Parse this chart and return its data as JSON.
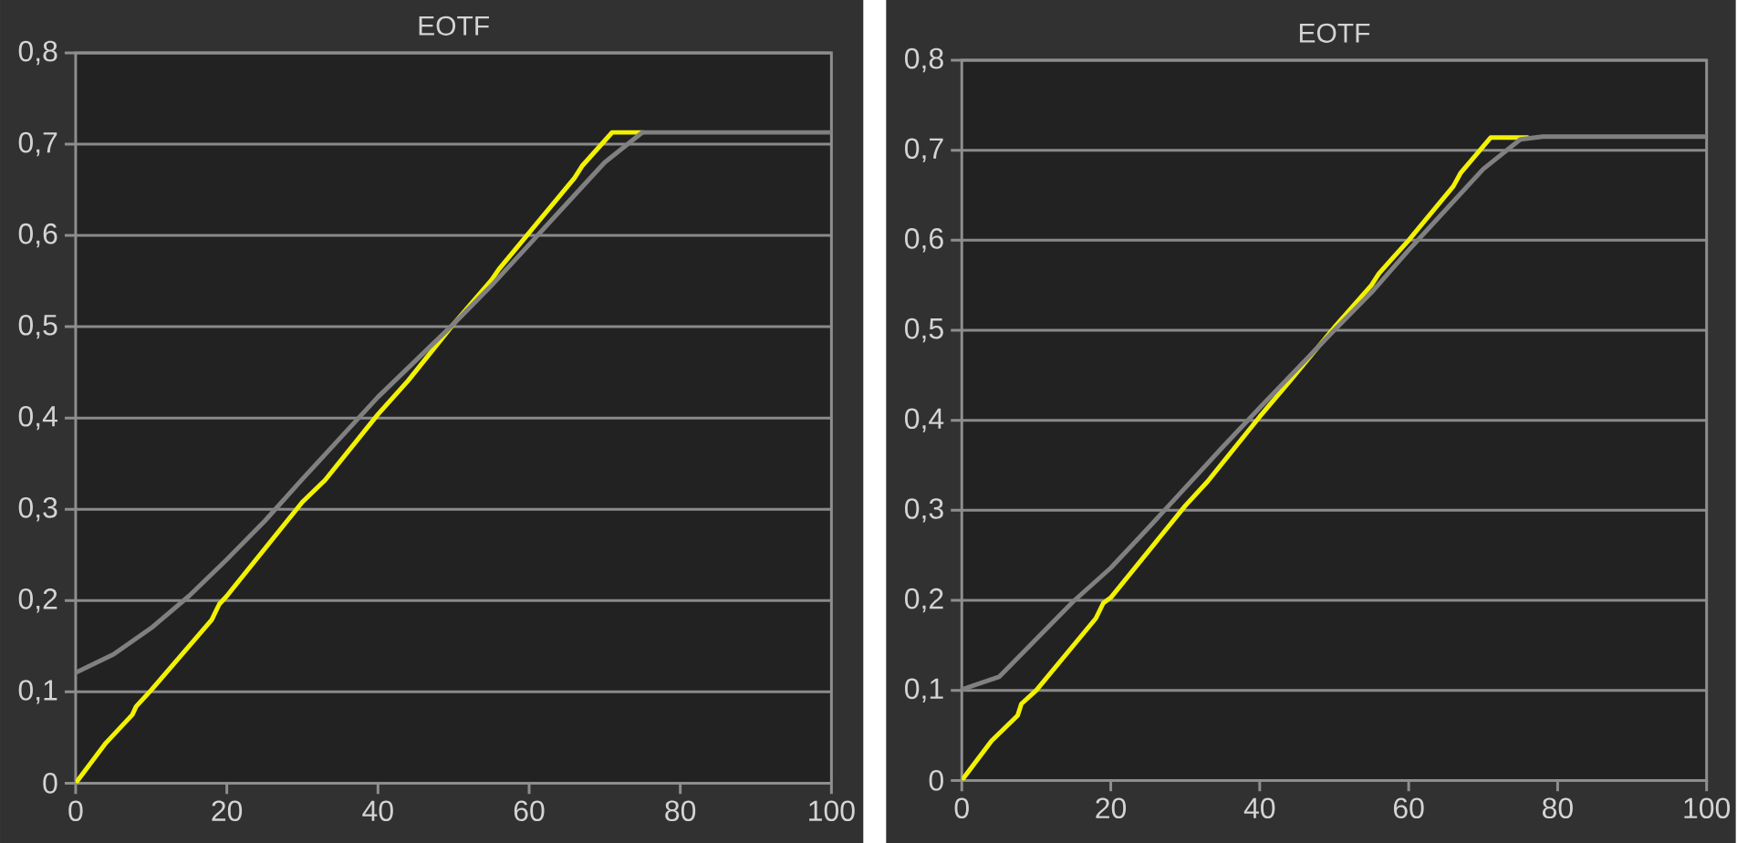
{
  "chart_data": [
    {
      "type": "line",
      "title": "EOTF",
      "xlim": [
        0,
        100
      ],
      "ylim": [
        0,
        0.8
      ],
      "xticks": [
        0,
        20,
        40,
        60,
        80,
        100
      ],
      "yticks": [
        0,
        {
          "value": 0.1,
          "label": "0,1"
        },
        {
          "value": 0.2,
          "label": "0,2"
        },
        {
          "value": 0.3,
          "label": "0,3"
        },
        {
          "value": 0.4,
          "label": "0,4"
        },
        {
          "value": 0.5,
          "label": "0,5"
        },
        {
          "value": 0.6,
          "label": "0,6"
        },
        {
          "value": 0.7,
          "label": "0,7"
        },
        {
          "value": 0.8,
          "label": "0,8"
        }
      ],
      "grid": "y",
      "marker": "none",
      "series": [
        {
          "color": "#f2f200",
          "x": [
            0,
            4,
            7.5,
            8,
            10,
            18,
            19,
            20,
            30,
            33,
            40,
            44,
            50,
            55,
            56,
            60,
            66,
            67,
            71,
            75
          ],
          "values": [
            0,
            0.044,
            0.075,
            0.084,
            0.102,
            0.179,
            0.196,
            0.205,
            0.308,
            0.332,
            0.404,
            0.441,
            0.503,
            0.551,
            0.563,
            0.603,
            0.663,
            0.676,
            0.713,
            0.713
          ]
        },
        {
          "color": "#808080",
          "x": [
            0,
            5,
            10,
            15,
            20,
            25,
            30,
            35,
            40,
            45,
            50,
            55,
            60,
            65,
            70,
            75,
            100
          ],
          "values": [
            0.121,
            0.141,
            0.17,
            0.205,
            0.245,
            0.287,
            0.333,
            0.378,
            0.423,
            0.463,
            0.503,
            0.545,
            0.59,
            0.635,
            0.68,
            0.713,
            0.713
          ]
        }
      ]
    },
    {
      "type": "line",
      "title": "EOTF",
      "xlim": [
        0,
        100
      ],
      "ylim": [
        0,
        0.8
      ],
      "xticks": [
        0,
        20,
        40,
        60,
        80,
        100
      ],
      "yticks": [
        0,
        {
          "value": 0.1,
          "label": "0,1"
        },
        {
          "value": 0.2,
          "label": "0,2"
        },
        {
          "value": 0.3,
          "label": "0,3"
        },
        {
          "value": 0.4,
          "label": "0,4"
        },
        {
          "value": 0.5,
          "label": "0,5"
        },
        {
          "value": 0.6,
          "label": "0,6"
        },
        {
          "value": 0.7,
          "label": "0,7"
        },
        {
          "value": 0.8,
          "label": "0,8"
        }
      ],
      "grid": "y",
      "marker": "none",
      "series": [
        {
          "color": "#f2f200",
          "x": [
            0,
            4,
            7.5,
            8,
            10,
            18,
            19,
            20,
            30,
            33,
            40,
            44,
            50,
            55,
            56,
            60,
            66,
            67,
            71,
            76
          ],
          "values": [
            0,
            0.044,
            0.072,
            0.085,
            0.1,
            0.18,
            0.197,
            0.203,
            0.305,
            0.332,
            0.404,
            0.443,
            0.503,
            0.55,
            0.563,
            0.6,
            0.66,
            0.675,
            0.714,
            0.714
          ]
        },
        {
          "color": "#808080",
          "x": [
            0,
            5,
            10,
            15,
            20,
            25,
            30,
            35,
            40,
            45,
            50,
            55,
            60,
            65,
            70,
            75,
            78,
            100
          ],
          "values": [
            0.101,
            0.115,
            0.157,
            0.199,
            0.236,
            0.28,
            0.325,
            0.37,
            0.414,
            0.457,
            0.5,
            0.542,
            0.589,
            0.634,
            0.679,
            0.712,
            0.715,
            0.715
          ]
        }
      ]
    }
  ]
}
